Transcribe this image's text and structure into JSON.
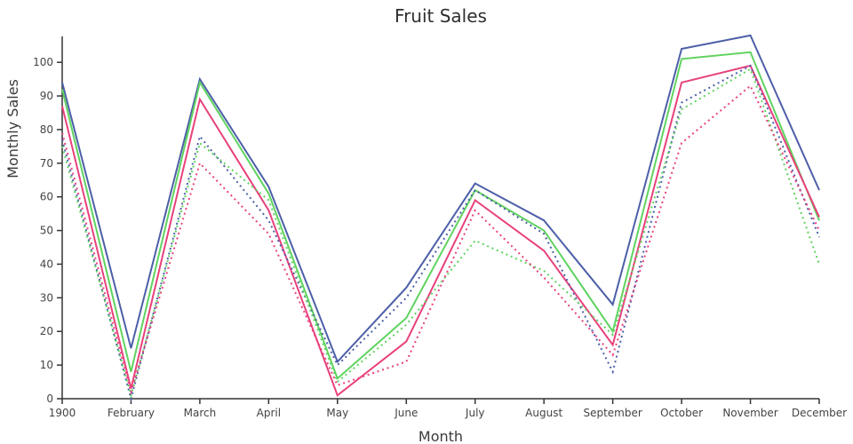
{
  "title": "Fruit Sales",
  "chart_data": {
    "type": "line",
    "title": "Fruit Sales",
    "xlabel": "Month",
    "ylabel": "Monthly Sales",
    "x_tick_labels": [
      "1900",
      "February",
      "March",
      "April",
      "May",
      "June",
      "July",
      "August",
      "September",
      "October",
      "November",
      "December"
    ],
    "y_ticks": [
      0,
      10,
      20,
      30,
      40,
      50,
      60,
      70,
      80,
      90,
      100
    ],
    "ylim": [
      0,
      107.7
    ],
    "grid": false,
    "legend_position": "none",
    "background_color": "#ffffff",
    "axis_color": "#333333",
    "series": [
      {
        "name": "blue-solid",
        "color": "#4D5FA8",
        "dash": "solid",
        "values": [
          94,
          15,
          95,
          63,
          11,
          33,
          64,
          53,
          28,
          104,
          108,
          62
        ]
      },
      {
        "name": "green-solid",
        "color": "#5FD35F",
        "dash": "solid",
        "values": [
          92,
          8,
          94,
          61,
          6,
          24,
          62,
          50,
          20,
          101,
          103,
          53
        ]
      },
      {
        "name": "pink-solid",
        "color": "#E8417C",
        "dash": "solid",
        "values": [
          87,
          3,
          89,
          56,
          1,
          17,
          59,
          44,
          16,
          94,
          99,
          54
        ]
      },
      {
        "name": "blue-dotted",
        "color": "#4D5FA8",
        "dash": "dot",
        "values": [
          77,
          0,
          78,
          53,
          10,
          30,
          62,
          49,
          8,
          88,
          99,
          48
        ]
      },
      {
        "name": "green-dotted",
        "color": "#5FD35F",
        "dash": "dot",
        "values": [
          75,
          1,
          76,
          59,
          5,
          22,
          47,
          38,
          19,
          86,
          98,
          40
        ]
      },
      {
        "name": "pink-dotted",
        "color": "#E8417C",
        "dash": "dot",
        "values": [
          79,
          2,
          70,
          49,
          4,
          11,
          56,
          36,
          13,
          76,
          93,
          50
        ]
      }
    ]
  }
}
